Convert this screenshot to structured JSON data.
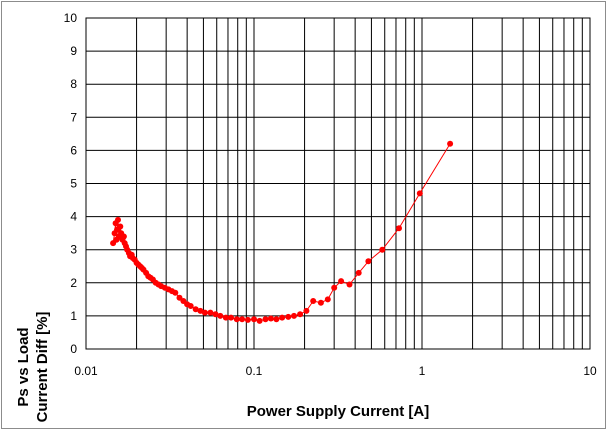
{
  "chart_data": {
    "type": "scatter",
    "title": "",
    "xlabel": "Power Supply Current [A]",
    "ylabel_lines": [
      "Ps vs Load",
      "Current Diff [%]"
    ],
    "x_scale": "log",
    "xlim": [
      0.01,
      10
    ],
    "ylim": [
      0,
      10
    ],
    "x_tick_labels": [
      "0.01",
      "0.1",
      "1",
      "10"
    ],
    "x_tick_values": [
      0.01,
      0.1,
      1,
      10
    ],
    "y_tick_labels": [
      "0",
      "1",
      "2",
      "3",
      "4",
      "5",
      "6",
      "7",
      "8",
      "9",
      "10"
    ],
    "y_tick_values": [
      0,
      1,
      2,
      3,
      4,
      5,
      6,
      7,
      8,
      9,
      10
    ],
    "grid": true,
    "legend": "none",
    "series": [
      {
        "color": "#ff0000",
        "marker": "circle",
        "line": true,
        "x": [
          0.0145,
          0.0148,
          0.015,
          0.0152,
          0.0153,
          0.0155,
          0.0157,
          0.016,
          0.0162,
          0.0165,
          0.0168,
          0.017,
          0.0173,
          0.0176,
          0.018,
          0.0183,
          0.0187,
          0.019,
          0.0195,
          0.02,
          0.0205,
          0.021,
          0.0215,
          0.022,
          0.0228,
          0.0235,
          0.0242,
          0.025,
          0.026,
          0.027,
          0.028,
          0.0295,
          0.031,
          0.0325,
          0.034,
          0.036,
          0.038,
          0.04,
          0.042,
          0.045,
          0.048,
          0.051,
          0.055,
          0.059,
          0.063,
          0.068,
          0.073,
          0.079,
          0.085,
          0.092,
          0.1,
          0.108,
          0.117,
          0.126,
          0.136,
          0.147,
          0.16,
          0.173,
          0.188,
          0.205,
          0.225,
          0.25,
          0.275,
          0.3,
          0.33,
          0.37,
          0.42,
          0.48,
          0.58,
          0.73,
          0.97,
          1.47
        ],
        "y": [
          3.2,
          3.5,
          3.8,
          3.3,
          3.6,
          3.9,
          3.4,
          3.7,
          3.5,
          3.3,
          3.4,
          3.2,
          3.1,
          3.0,
          2.9,
          2.8,
          2.85,
          2.75,
          2.7,
          2.6,
          2.55,
          2.5,
          2.45,
          2.4,
          2.3,
          2.2,
          2.15,
          2.1,
          2.0,
          1.95,
          1.9,
          1.85,
          1.8,
          1.75,
          1.7,
          1.55,
          1.45,
          1.35,
          1.3,
          1.2,
          1.15,
          1.1,
          1.1,
          1.05,
          1.0,
          0.95,
          0.95,
          0.9,
          0.9,
          0.88,
          0.9,
          0.85,
          0.9,
          0.92,
          0.9,
          0.95,
          0.97,
          1.0,
          1.05,
          1.15,
          1.45,
          1.4,
          1.5,
          1.85,
          2.05,
          1.95,
          2.3,
          2.65,
          3.0,
          3.65,
          4.7,
          6.2
        ]
      }
    ]
  }
}
